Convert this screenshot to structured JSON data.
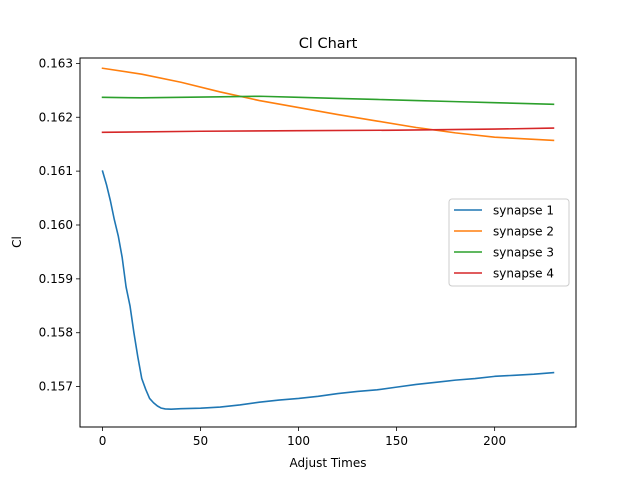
{
  "chart_data": {
    "type": "line",
    "title": "Cl Chart",
    "xlabel": "Adjust Times",
    "ylabel": "Cl",
    "xlim": [
      -11.5,
      241.5
    ],
    "ylim": [
      0.15625,
      0.1631
    ],
    "xticks": [
      0,
      50,
      100,
      150,
      200
    ],
    "yticks": [
      0.157,
      0.158,
      0.159,
      0.16,
      0.161,
      0.162,
      0.163
    ],
    "ytick_labels": [
      "0.157",
      "0.158",
      "0.159",
      "0.160",
      "0.161",
      "0.162",
      "0.163"
    ],
    "grid": false,
    "legend_position": "center-right",
    "series": [
      {
        "name": "synapse 1",
        "color": "#1f77b4",
        "x": [
          0,
          2,
          4,
          6,
          8,
          10,
          12,
          14,
          16,
          18,
          20,
          22,
          24,
          26,
          28,
          30,
          32,
          35,
          40,
          50,
          60,
          70,
          80,
          90,
          100,
          110,
          120,
          130,
          140,
          150,
          160,
          170,
          180,
          190,
          200,
          210,
          220,
          230
        ],
        "y": [
          0.161,
          0.16075,
          0.16045,
          0.1601,
          0.1598,
          0.1594,
          0.15885,
          0.1585,
          0.158,
          0.15755,
          0.15715,
          0.15695,
          0.15678,
          0.1567,
          0.15664,
          0.1566,
          0.156585,
          0.15658,
          0.15659,
          0.1566,
          0.15662,
          0.15666,
          0.15671,
          0.15675,
          0.15678,
          0.15682,
          0.15687,
          0.15691,
          0.15694,
          0.15699,
          0.15704,
          0.15708,
          0.15712,
          0.15715,
          0.15719,
          0.15721,
          0.15723,
          0.15726
        ]
      },
      {
        "name": "synapse 2",
        "color": "#ff7f0e",
        "x": [
          0,
          20,
          40,
          60,
          80,
          100,
          120,
          140,
          160,
          180,
          200,
          230
        ],
        "y": [
          0.16291,
          0.1628,
          0.16265,
          0.16247,
          0.16231,
          0.16218,
          0.16205,
          0.16193,
          0.16181,
          0.16171,
          0.16163,
          0.16157
        ]
      },
      {
        "name": "synapse 3",
        "color": "#2ca02c",
        "x": [
          0,
          20,
          40,
          60,
          80,
          100,
          120,
          140,
          160,
          180,
          200,
          230
        ],
        "y": [
          0.16237,
          0.16236,
          0.16237,
          0.16238,
          0.16239,
          0.16237,
          0.16235,
          0.16233,
          0.16231,
          0.16229,
          0.16227,
          0.16224
        ]
      },
      {
        "name": "synapse 4",
        "color": "#d62728",
        "x": [
          0,
          50,
          100,
          150,
          200,
          230
        ],
        "y": [
          0.16172,
          0.16174,
          0.16175,
          0.16176,
          0.16178,
          0.1618
        ]
      }
    ]
  }
}
